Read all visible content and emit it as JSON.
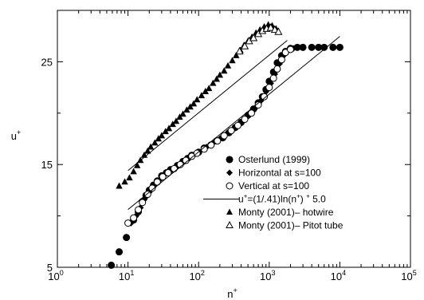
{
  "chart_data": {
    "type": "scatter",
    "xscale": "log",
    "xlim": [
      1,
      100000
    ],
    "ylim": [
      5,
      30
    ],
    "xlabel": "n+",
    "ylabel": "u+",
    "xticks": [
      {
        "value": 1,
        "base": "10",
        "exp": "0"
      },
      {
        "value": 10,
        "base": "10",
        "exp": "1"
      },
      {
        "value": 100,
        "base": "10",
        "exp": "2"
      },
      {
        "value": 1000,
        "base": "10",
        "exp": "3"
      },
      {
        "value": 10000,
        "base": "10",
        "exp": "4"
      },
      {
        "value": 100000,
        "base": "10",
        "exp": "5"
      }
    ],
    "yticks": [
      {
        "value": 5,
        "label": "5"
      },
      {
        "value": 15,
        "label": "15"
      },
      {
        "value": 25,
        "label": "25"
      }
    ],
    "grid": false,
    "legend_position": "center-right",
    "series": [
      {
        "name": "Osterlund (1999)",
        "marker": "filled-circle",
        "points": [
          [
            5.8,
            5.2
          ],
          [
            7.5,
            6.5
          ],
          [
            9.5,
            7.9
          ],
          [
            12,
            9.6
          ],
          [
            14,
            10.4
          ],
          [
            16,
            11.4
          ],
          [
            18,
            12.0
          ],
          [
            20,
            12.5
          ],
          [
            23,
            13.0
          ],
          [
            26,
            13.4
          ],
          [
            30,
            13.9
          ],
          [
            35,
            14.2
          ],
          [
            40,
            14.5
          ],
          [
            50,
            14.9
          ],
          [
            60,
            15.3
          ],
          [
            70,
            15.6
          ],
          [
            80,
            15.9
          ],
          [
            100,
            16.2
          ],
          [
            120,
            16.6
          ],
          [
            150,
            16.9
          ],
          [
            180,
            17.3
          ],
          [
            220,
            17.6
          ],
          [
            270,
            18.1
          ],
          [
            330,
            18.6
          ],
          [
            400,
            19.1
          ],
          [
            500,
            19.8
          ],
          [
            600,
            20.4
          ],
          [
            700,
            21.0
          ],
          [
            800,
            21.6
          ],
          [
            900,
            22.3
          ],
          [
            1000,
            23.1
          ],
          [
            1150,
            24.0
          ],
          [
            1300,
            24.9
          ],
          [
            1500,
            25.6
          ],
          [
            1700,
            26.0
          ],
          [
            2000,
            26.3
          ],
          [
            2500,
            26.4
          ],
          [
            3000,
            26.4
          ],
          [
            4000,
            26.4
          ],
          [
            5000,
            26.4
          ],
          [
            6000,
            26.4
          ],
          [
            8000,
            26.4
          ],
          [
            10000,
            26.4
          ]
        ]
      },
      {
        "name": "Horizontal at s=100",
        "marker": "filled-diamond",
        "points": [
          [
            11,
            9.3
          ],
          [
            13,
            10.0
          ],
          [
            15,
            10.8
          ],
          [
            17,
            11.6
          ],
          [
            20,
            12.3
          ],
          [
            24,
            13.0
          ],
          [
            28,
            13.5
          ],
          [
            33,
            14.0
          ],
          [
            40,
            14.4
          ],
          [
            48,
            14.8
          ],
          [
            58,
            15.2
          ],
          [
            70,
            15.6
          ],
          [
            85,
            15.9
          ],
          [
            100,
            16.2
          ],
          [
            130,
            16.7
          ],
          [
            160,
            17.1
          ],
          [
            200,
            17.5
          ],
          [
            250,
            18.0
          ],
          [
            320,
            18.5
          ],
          [
            400,
            19.1
          ],
          [
            500,
            19.7
          ],
          [
            620,
            20.4
          ],
          [
            760,
            21.2
          ],
          [
            900,
            22.1
          ],
          [
            1050,
            22.9
          ],
          [
            1200,
            23.8
          ],
          [
            1400,
            24.8
          ],
          [
            1600,
            25.6
          ],
          [
            1800,
            26.0
          ],
          [
            2200,
            26.3
          ]
        ]
      },
      {
        "name": "Vertical at s=100",
        "marker": "open-circle",
        "points": [
          [
            10,
            9.3
          ],
          [
            12,
            9.8
          ],
          [
            14,
            10.6
          ],
          [
            16,
            11.3
          ],
          [
            19,
            12.1
          ],
          [
            22,
            12.7
          ],
          [
            26,
            13.3
          ],
          [
            31,
            13.8
          ],
          [
            37,
            14.2
          ],
          [
            45,
            14.6
          ],
          [
            55,
            15.0
          ],
          [
            66,
            15.4
          ],
          [
            80,
            15.8
          ],
          [
            95,
            16.1
          ],
          [
            120,
            16.5
          ],
          [
            150,
            16.9
          ],
          [
            185,
            17.3
          ],
          [
            230,
            17.8
          ],
          [
            290,
            18.3
          ],
          [
            360,
            18.8
          ],
          [
            450,
            19.4
          ],
          [
            560,
            20.0
          ],
          [
            700,
            20.8
          ],
          [
            850,
            21.6
          ],
          [
            1000,
            22.5
          ],
          [
            1150,
            23.4
          ],
          [
            1300,
            24.3
          ],
          [
            1500,
            25.2
          ],
          [
            1700,
            25.9
          ],
          [
            2000,
            26.2
          ]
        ]
      },
      {
        "name": "u+=(1/.41)ln(n+) + 5.0",
        "marker": "line",
        "kappa": 0.41,
        "B": 5.0,
        "x_range": [
          10,
          10000
        ],
        "points": [
          [
            10,
            10.62
          ],
          [
            10000,
            27.46
          ]
        ]
      },
      {
        "name": "Monty (2001)– hotwire",
        "marker": "filled-triangle",
        "points": [
          [
            7.5,
            12.9
          ],
          [
            9,
            13.3
          ],
          [
            10.5,
            13.7
          ],
          [
            12,
            14.3
          ],
          [
            13.5,
            14.9
          ],
          [
            15,
            15.4
          ],
          [
            17,
            15.9
          ],
          [
            19,
            16.3
          ],
          [
            21,
            16.7
          ],
          [
            24,
            17.1
          ],
          [
            27,
            17.5
          ],
          [
            30,
            17.8
          ],
          [
            34,
            18.2
          ],
          [
            38,
            18.5
          ],
          [
            43,
            18.9
          ],
          [
            48,
            19.2
          ],
          [
            54,
            19.6
          ],
          [
            60,
            19.9
          ],
          [
            68,
            20.3
          ],
          [
            76,
            20.6
          ],
          [
            85,
            20.9
          ],
          [
            95,
            21.3
          ],
          [
            110,
            21.7
          ],
          [
            125,
            22.1
          ],
          [
            140,
            22.4
          ],
          [
            160,
            22.9
          ],
          [
            180,
            23.3
          ],
          [
            200,
            23.7
          ],
          [
            230,
            24.1
          ],
          [
            260,
            24.6
          ],
          [
            300,
            25.1
          ],
          [
            340,
            25.6
          ],
          [
            390,
            26.1
          ],
          [
            440,
            26.6
          ],
          [
            500,
            27.0
          ],
          [
            570,
            27.4
          ],
          [
            650,
            27.8
          ],
          [
            740,
            28.1
          ],
          [
            850,
            28.4
          ],
          [
            970,
            28.6
          ],
          [
            1100,
            28.5
          ],
          [
            1250,
            28.2
          ]
        ]
      },
      {
        "name": "Monty (2001)– Pitot tube",
        "marker": "open-triangle",
        "points": [
          [
            380,
            26.0
          ],
          [
            450,
            26.5
          ],
          [
            520,
            27.0
          ],
          [
            600,
            27.3
          ],
          [
            700,
            27.7
          ],
          [
            800,
            28.0
          ],
          [
            920,
            28.2
          ],
          [
            1050,
            28.3
          ],
          [
            1200,
            28.1
          ],
          [
            1350,
            27.9
          ]
        ]
      },
      {
        "name": "",
        "marker": "line",
        "kappa": 0.41,
        "B": 8.8,
        "x_range": [
          10,
          1800
        ],
        "points": [
          [
            10,
            14.42
          ],
          [
            1800,
            27.09
          ]
        ]
      }
    ],
    "colors": {
      "ink": "#000000",
      "background": "#ffffff"
    }
  }
}
